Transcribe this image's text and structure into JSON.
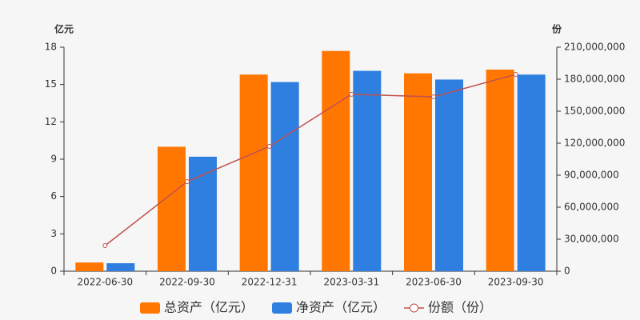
{
  "chart_data": {
    "type": "bar",
    "y_label": "亿元",
    "y2_label": "份",
    "categories": [
      "2022-06-30",
      "2022-09-30",
      "2022-12-31",
      "2023-03-31",
      "2023-06-30",
      "2023-09-30"
    ],
    "series": [
      {
        "name": "总资产（亿元）",
        "color": "#ff7700",
        "type": "bar",
        "values": [
          0.7,
          10.0,
          15.8,
          17.7,
          15.9,
          16.2
        ]
      },
      {
        "name": "净资产（亿元）",
        "color": "#2e7fe0",
        "type": "bar",
        "values": [
          0.64,
          9.2,
          15.2,
          16.1,
          15.4,
          15.8
        ]
      },
      {
        "name": "份额（份）",
        "color": "#c0504d",
        "type": "line",
        "axis": "y2",
        "values": [
          24000000,
          84000000,
          117000000,
          165800000,
          163500000,
          184500000
        ]
      }
    ],
    "ylim": [
      0,
      18
    ],
    "yticks": [
      0,
      3,
      6,
      9,
      12,
      15,
      18
    ],
    "y2lim": [
      0,
      210000000
    ],
    "y2ticks": [
      0,
      {
        "value": 30000000,
        "label": "30,000,000"
      },
      {
        "value": 60000000,
        "label": "60,000,000"
      },
      {
        "value": 90000000,
        "label": "90,000,000"
      },
      {
        "value": 120000000,
        "label": "120,000,000"
      },
      {
        "value": 150000000,
        "label": "150,000,000"
      },
      {
        "value": 180000000,
        "label": "180,000,000"
      },
      {
        "value": 210000000,
        "label": "210,000,000"
      }
    ],
    "grid": false,
    "legend": "bottom"
  }
}
